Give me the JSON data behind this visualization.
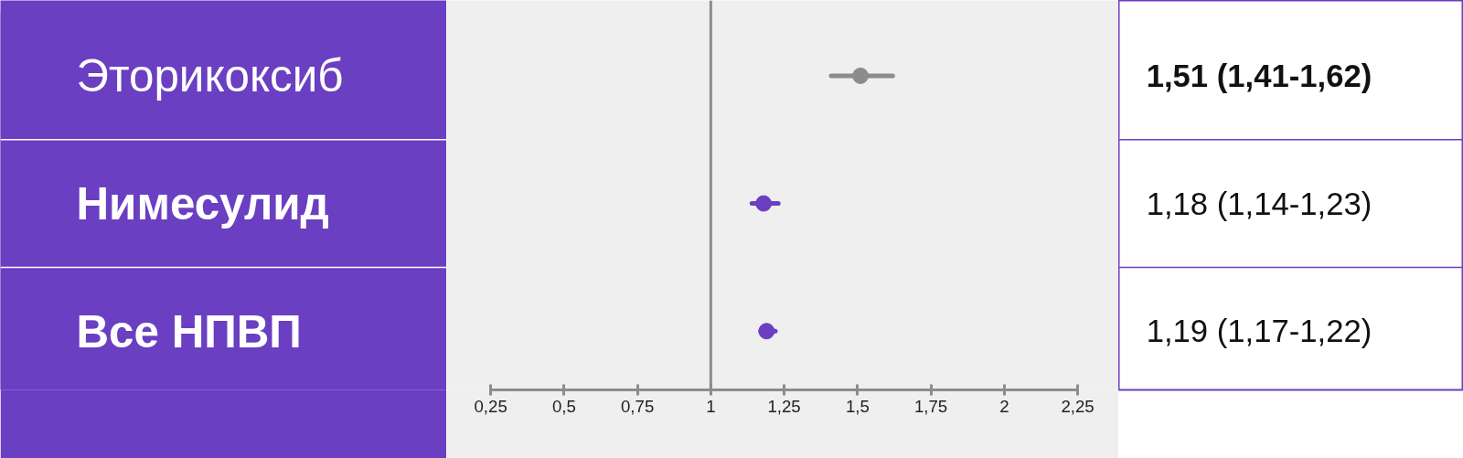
{
  "chart_data": {
    "type": "scatter",
    "orientation": "horizontal",
    "categories": [
      "Эторикоксиб",
      "Нимесулид",
      "Все НПВП"
    ],
    "values": [
      1.51,
      1.18,
      1.19
    ],
    "errors": [
      [
        1.41,
        1.62
      ],
      [
        1.14,
        1.23
      ],
      [
        1.17,
        1.22
      ]
    ],
    "value_labels": [
      "1,51 (1,41-1,62)",
      "1,18 (1,14-1,23)",
      "1,19 (1,17-1,22)"
    ],
    "colors": [
      "#8c8c8c",
      "#6a3fc1",
      "#6a3fc1"
    ],
    "xlim": [
      0.1,
      2.39
    ],
    "xticks": [
      {
        "value": 0.25,
        "label": "0,25"
      },
      {
        "value": 0.5,
        "label": "0,5"
      },
      {
        "value": 0.75,
        "label": "0,75"
      },
      1,
      {
        "value": 1.25,
        "label": "1,25"
      },
      {
        "value": 1.5,
        "label": "1,5"
      },
      {
        "value": 1.75,
        "label": "1,75"
      },
      2,
      {
        "value": 2.25,
        "label": "2,25"
      }
    ],
    "ref_lines": [
      {
        "axis": "x",
        "value": 1,
        "color": "#8c8c8c"
      }
    ],
    "marker": "circle",
    "grid": false
  }
}
